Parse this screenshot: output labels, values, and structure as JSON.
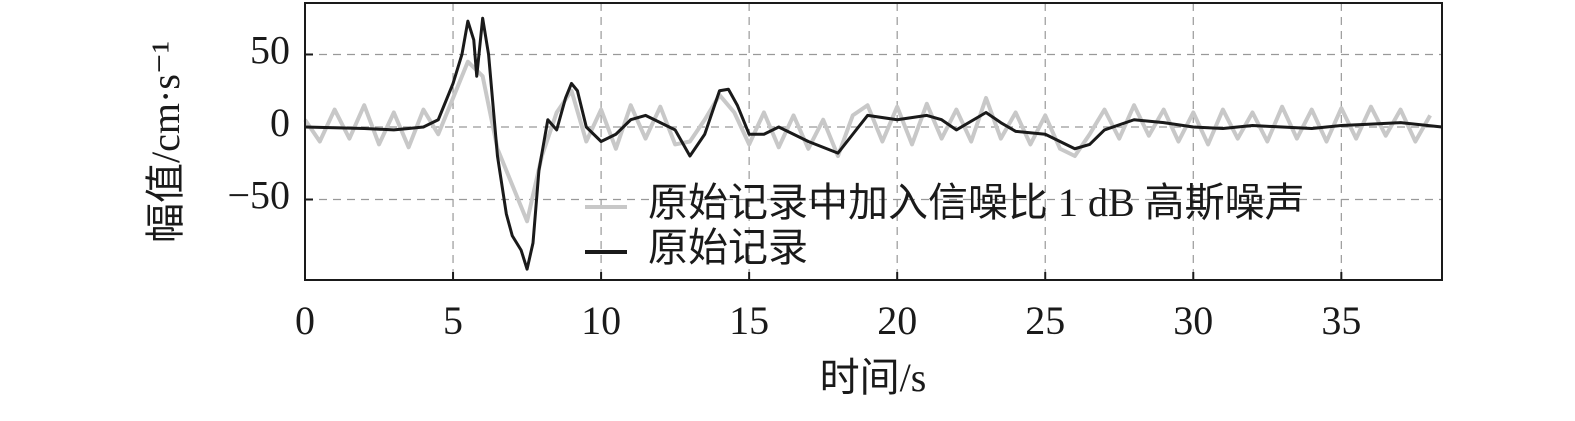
{
  "chart_data": {
    "type": "line",
    "x_label": "时间/s",
    "y_label": "幅值/cm·s⁻¹",
    "xlim": [
      0,
      38.4
    ],
    "ylim": [
      -105.5,
      85.5
    ],
    "xticks": [
      0,
      5,
      10,
      15,
      20,
      25,
      30,
      35
    ],
    "yticks": [
      {
        "value": -50,
        "label": "−50"
      },
      0,
      50
    ],
    "grid": true,
    "legend": "lower center",
    "series": [
      {
        "name": "原始记录中加入信噪比 1 dB 高斯噪声",
        "color": "#c8c8c8",
        "x": [
          0,
          0.5,
          1,
          1.5,
          2,
          2.5,
          3,
          3.5,
          4,
          4.5,
          5,
          5.5,
          6,
          6.5,
          7,
          7.5,
          8,
          8.5,
          9,
          9.5,
          10,
          10.5,
          11,
          11.5,
          12,
          12.5,
          13,
          13.5,
          14,
          14.5,
          15,
          15.5,
          16,
          16.5,
          17,
          17.5,
          18,
          18.5,
          19,
          19.5,
          20,
          20.5,
          21,
          21.5,
          22,
          22.5,
          23,
          23.5,
          24,
          24.5,
          25,
          25.5,
          26,
          26.5,
          27,
          27.5,
          28,
          28.5,
          29,
          29.5,
          30,
          30.5,
          31,
          31.5,
          32,
          32.5,
          33,
          33.5,
          34,
          34.5,
          35,
          35.5,
          36,
          36.5,
          37,
          37.5,
          38
        ],
        "values": [
          5,
          -10,
          12,
          -8,
          15,
          -12,
          10,
          -14,
          12,
          -5,
          20,
          45,
          35,
          -15,
          -40,
          -65,
          -20,
          10,
          25,
          -10,
          12,
          -15,
          15,
          -8,
          14,
          -12,
          -10,
          5,
          22,
          10,
          -12,
          10,
          -14,
          8,
          -15,
          5,
          -20,
          8,
          15,
          -10,
          14,
          -12,
          16,
          -8,
          12,
          -10,
          20,
          -8,
          10,
          -12,
          8,
          -15,
          -20,
          -5,
          12,
          -8,
          15,
          -6,
          12,
          -10,
          10,
          -12,
          12,
          -8,
          10,
          -10,
          14,
          -8,
          12,
          -10,
          13,
          -8,
          14,
          -6,
          12,
          -10,
          8
        ]
      },
      {
        "name": "原始记录",
        "color": "#1a1a1a",
        "x": [
          0,
          1,
          2,
          3,
          3.5,
          4,
          4.5,
          5,
          5.3,
          5.5,
          5.7,
          5.8,
          6,
          6.2,
          6.5,
          6.8,
          7,
          7.3,
          7.5,
          7.7,
          7.9,
          8.2,
          8.5,
          8.8,
          9,
          9.2,
          9.5,
          10,
          10.5,
          11,
          11.5,
          12,
          12.5,
          13,
          13.5,
          14,
          14.3,
          14.6,
          15,
          15.5,
          16,
          16.5,
          17,
          18,
          18.5,
          19,
          20,
          21,
          21.5,
          22,
          23,
          23.5,
          24,
          25,
          26,
          26.5,
          27,
          28,
          29,
          30,
          31,
          32,
          33,
          34,
          35,
          36,
          37,
          38.4
        ],
        "values": [
          0,
          -0.5,
          -1,
          -2,
          -1,
          0,
          5,
          30,
          50,
          73,
          60,
          35,
          75,
          50,
          -20,
          -60,
          -75,
          -85,
          -98,
          -80,
          -30,
          5,
          -2,
          20,
          30,
          25,
          0,
          -10,
          -5,
          5,
          8,
          3,
          -2,
          -20,
          -5,
          25,
          26,
          15,
          -5,
          -5,
          0,
          -5,
          -10,
          -18,
          -5,
          8,
          5,
          8,
          5,
          -2,
          10,
          3,
          -3,
          -5,
          -15,
          -12,
          -2,
          5,
          3,
          0,
          -1,
          1,
          0,
          -1,
          1,
          2,
          3,
          0
        ]
      }
    ]
  }
}
